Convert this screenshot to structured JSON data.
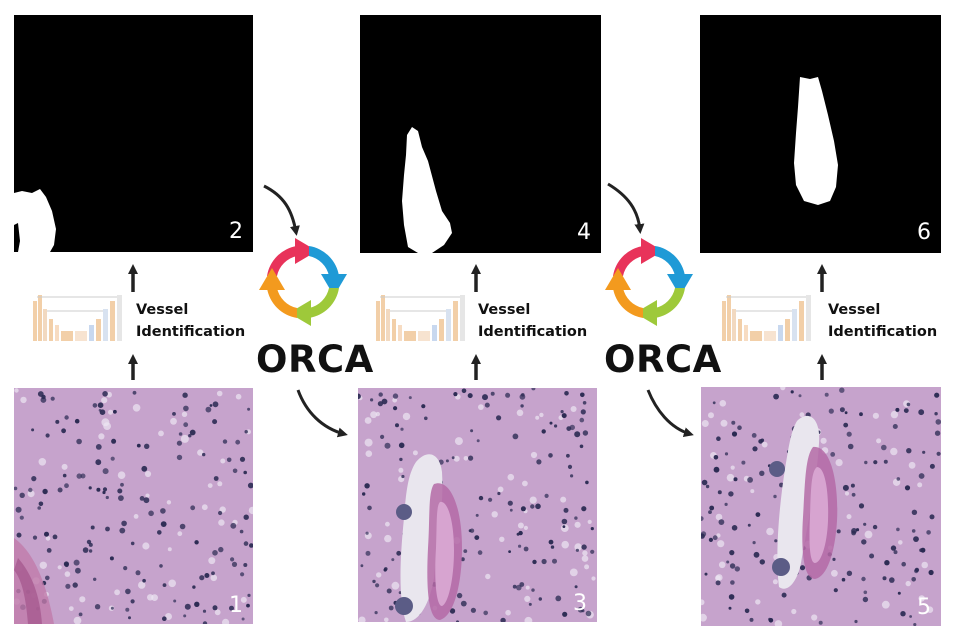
{
  "panels": [
    {
      "number": "1",
      "kind": "histology"
    },
    {
      "number": "2",
      "kind": "mask"
    },
    {
      "number": "3",
      "kind": "histology"
    },
    {
      "number": "4",
      "kind": "mask"
    },
    {
      "number": "5",
      "kind": "histology"
    },
    {
      "number": "6",
      "kind": "mask"
    }
  ],
  "steps": [
    {
      "line1": "Vessel",
      "line2": "Identification"
    },
    {
      "line1": "Vessel",
      "line2": "Identification"
    },
    {
      "line1": "Vessel",
      "line2": "Identification"
    }
  ],
  "orca": [
    {
      "label": "ORCA",
      "icon": "cycle-arrows-icon"
    },
    {
      "label": "ORCA",
      "icon": "cycle-arrows-icon"
    }
  ],
  "colors": {
    "mask_background": "#000000",
    "tissue": "#c6a3cc",
    "nuclei": "#2a2a52",
    "cycle_red": "#e8335a",
    "cycle_blue": "#1f9ad6",
    "cycle_green": "#9ec93a",
    "cycle_orange": "#f39a1e"
  }
}
